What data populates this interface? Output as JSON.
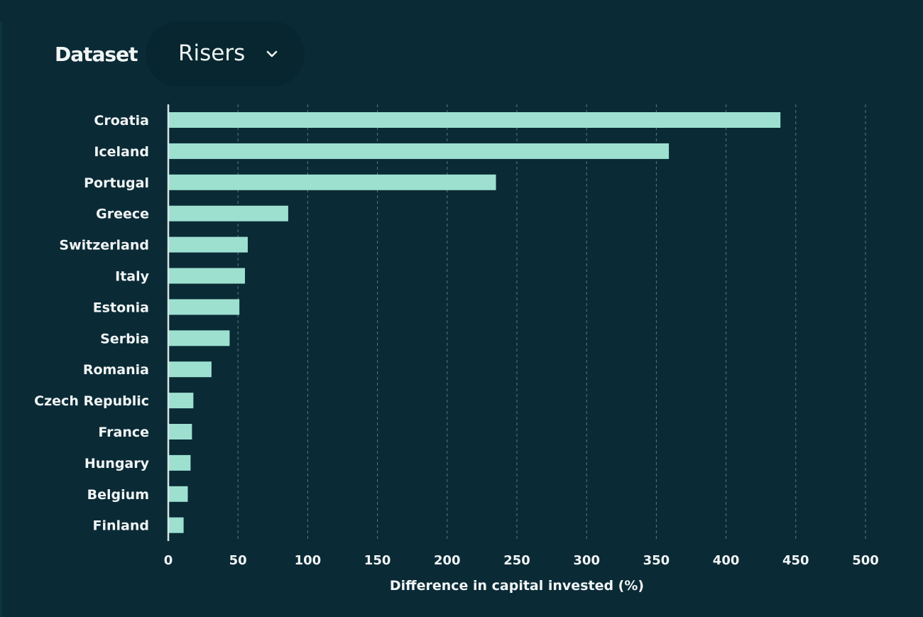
{
  "header": {
    "dataset_label": "Dataset",
    "dataset_value": "Risers",
    "dataset_icon": "chevron-down-icon"
  },
  "colors": {
    "background": "#0a2a36",
    "bar": "#9de0d0",
    "grid": "#5a7a80",
    "text": "#f1f5f4"
  },
  "chart_data": {
    "type": "bar",
    "orientation": "horizontal",
    "categories": [
      "Croatia",
      "Iceland",
      "Portugal",
      "Greece",
      "Switzerland",
      "Italy",
      "Estonia",
      "Serbia",
      "Romania",
      "Czech Republic",
      "France",
      "Hungary",
      "Belgium",
      "Finland"
    ],
    "values": [
      439,
      359,
      235,
      86,
      57,
      55,
      51,
      44,
      31,
      18,
      17,
      16,
      14,
      11
    ],
    "xlabel": "Difference in capital invested (%)",
    "ylabel": "",
    "xlim": [
      0,
      500
    ],
    "xticks": [
      0,
      50,
      100,
      150,
      200,
      250,
      300,
      350,
      400,
      450,
      500
    ],
    "grid": "vertical dashed"
  }
}
